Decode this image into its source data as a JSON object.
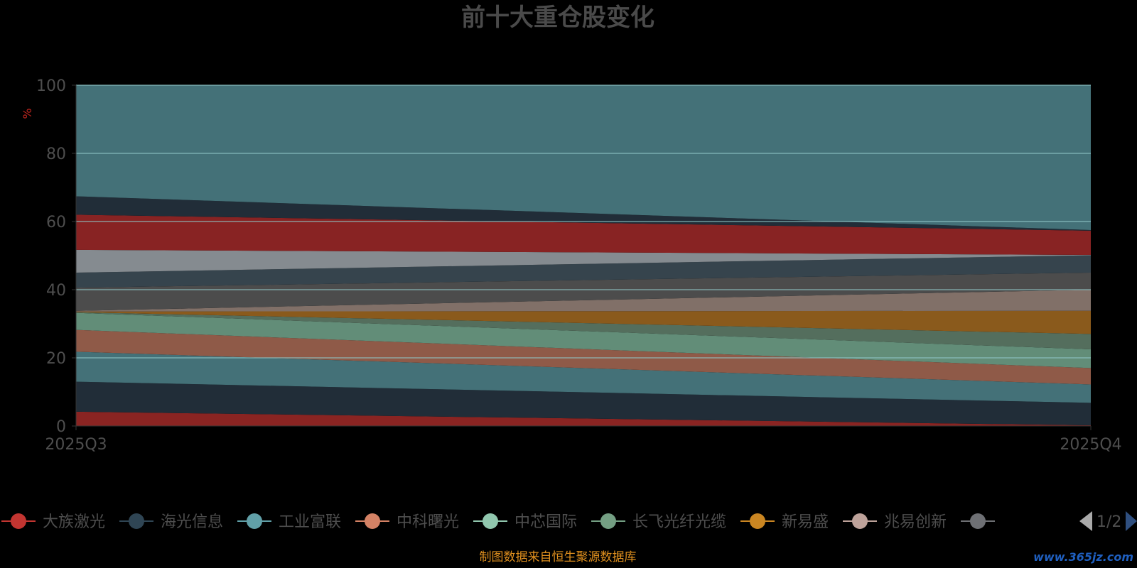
{
  "chart_data": {
    "type": "area",
    "stacked": true,
    "title": "前十大重仓股变化",
    "ylabel": "%",
    "ylim": [
      0,
      100
    ],
    "yticks": [
      0,
      20,
      40,
      60,
      80,
      100
    ],
    "x": [
      "2025Q3",
      "2025Q4"
    ],
    "grid": true,
    "series": [
      {
        "name": "大族激光",
        "values": [
          4.2,
          0.2
        ],
        "color": "#8a2422"
      },
      {
        "name": "海光信息",
        "values": [
          8.8,
          6.6
        ],
        "color": "#212d38"
      },
      {
        "name": "工业富联",
        "values": [
          8.8,
          5.4
        ],
        "color": "#447178"
      },
      {
        "name": "中科曙光",
        "values": [
          6.4,
          4.8
        ],
        "color": "#8f5a48"
      },
      {
        "name": "中芯国际",
        "values": [
          5.0,
          5.5
        ],
        "color": "#628d78"
      },
      {
        "name": "长飞光纤光缆",
        "values": [
          0.2,
          4.5
        ],
        "color": "#546e5d"
      },
      {
        "name": "新易盛",
        "values": [
          0.2,
          6.8
        ],
        "color": "#8a5a1c"
      },
      {
        "name": "兆易创新",
        "values": [
          0.2,
          6.2
        ],
        "color": "#817068"
      },
      {
        "name": "",
        "values": [
          6.8,
          5.0
        ],
        "color": "#4c4c4c"
      },
      {
        "name": "",
        "values": [
          4.4,
          5.1
        ],
        "color": "#36444d"
      },
      {
        "name": "",
        "values": [
          6.7,
          0.1
        ],
        "color": "#858b90"
      },
      {
        "name": "",
        "values": [
          10.3,
          7.1
        ],
        "color": "#882323"
      },
      {
        "name": "",
        "values": [
          5.4,
          0.2
        ],
        "color": "#212d38"
      },
      {
        "name": "",
        "values": [
          32.6,
          42.5
        ],
        "color": "#447178"
      }
    ]
  },
  "legend": {
    "items": [
      {
        "name": "大族激光",
        "color": "#c23531"
      },
      {
        "name": "海光信息",
        "color": "#2f4554"
      },
      {
        "name": "工业富联",
        "color": "#61a0a8"
      },
      {
        "name": "中科曙光",
        "color": "#d48265"
      },
      {
        "name": "中芯国际",
        "color": "#91c7ae"
      },
      {
        "name": "长飞光纤光缆",
        "color": "#749f83"
      },
      {
        "name": "新易盛",
        "color": "#ca8622"
      },
      {
        "name": "兆易创新",
        "color": "#bda29a"
      },
      {
        "name": "",
        "color": "#6e7074"
      }
    ],
    "page": "1/2"
  },
  "source_note": "制图数据来自恒生聚源数据库",
  "watermark": "www.365jz.com"
}
